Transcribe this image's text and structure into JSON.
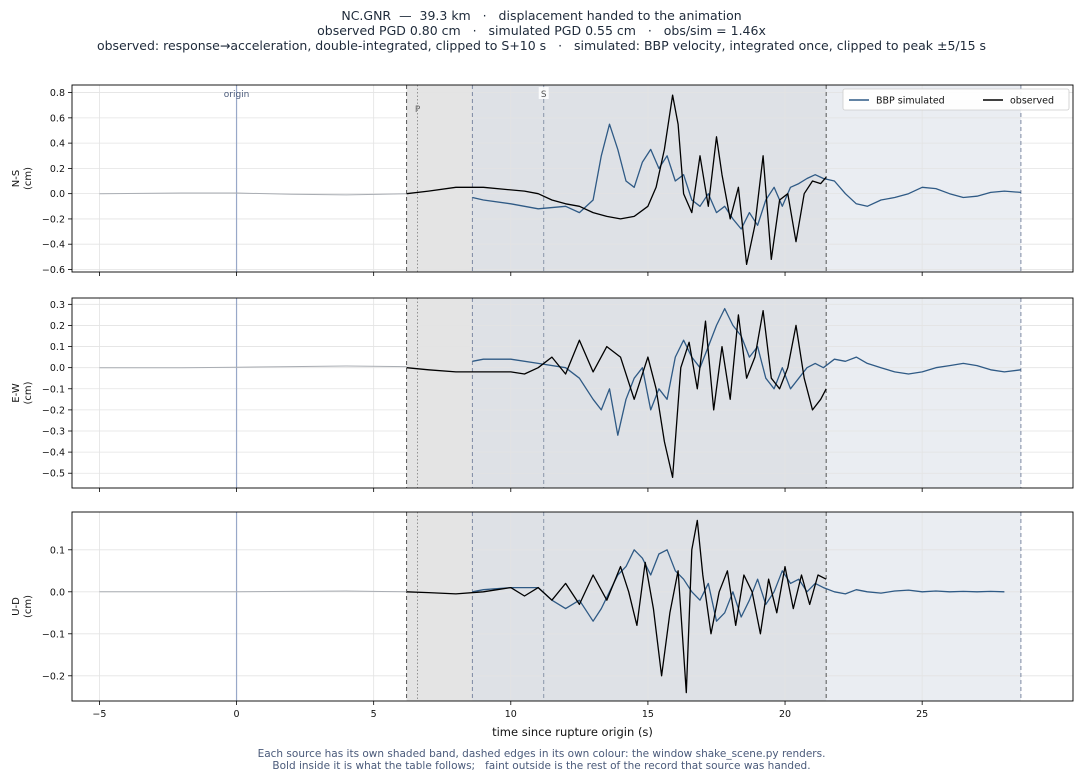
{
  "header": {
    "line1": "NC.GNR  —  39.3 km   ·   displacement handed to the animation",
    "line2": "observed PGD 0.80 cm   ·   simulated PGD 0.55 cm   ·   obs/sim = 1.46x",
    "line3": "observed: response→acceleration, double-integrated, clipped to S+10 s   ·   simulated: BBP velocity, integrated once, clipped to peak ±5/15 s"
  },
  "footer": {
    "line1": "Each source has its own shaded band, dashed edges in its own colour: the window shake_scene.py renders.",
    "line2": "Bold inside it is what the table follows;   faint outside is the rest of the record that source was handed."
  },
  "colors": {
    "observed": "#000000",
    "simulated": "#2f5a85",
    "faint": "#a9adb3",
    "origin_line": "#98a8c8",
    "obs_band": "#e4e4e4",
    "sim_band": "#d8dee8",
    "grid": "#e3e3e3"
  },
  "chart_data": {
    "type": "line",
    "xlabel": "time since rupture origin (s)",
    "xlim": [
      -6,
      30.5
    ],
    "xticks": [
      -5,
      0,
      5,
      10,
      15,
      20,
      25
    ],
    "grid": true,
    "legend": {
      "placement": "top-right",
      "entries": [
        "BBP simulated",
        "observed"
      ]
    },
    "markers": [
      {
        "label": "origin",
        "t": 0
      },
      {
        "label": "P",
        "t": 6.6
      },
      {
        "label": "S",
        "t": 11.2
      }
    ],
    "windows": {
      "observed": [
        6.2,
        21.5
      ],
      "simulated": [
        8.6,
        28.6
      ]
    },
    "panels": [
      {
        "component": "N-S",
        "ylabel": [
          "N-S",
          "(cm)"
        ],
        "ylim": [
          -0.62,
          0.86
        ],
        "yticks": [
          -0.6,
          -0.4,
          -0.2,
          0.0,
          0.2,
          0.4,
          0.6,
          0.8
        ],
        "ytick_labels": [
          "−0.6",
          "−0.4",
          "−0.2",
          "0.0",
          "0.2",
          "0.4",
          "0.6",
          "0.8"
        ],
        "faint": {
          "t": [
            -5,
            -2,
            0,
            2,
            4,
            6.2
          ],
          "v": [
            0,
            0.005,
            0.005,
            -0.005,
            -0.01,
            0
          ]
        },
        "observed": {
          "t": [
            6.2,
            7,
            8,
            9,
            10,
            10.5,
            11,
            11.5,
            12,
            12.5,
            13,
            13.5,
            14,
            14.5,
            15,
            15.3,
            15.6,
            15.9,
            16.1,
            16.3,
            16.6,
            16.9,
            17.2,
            17.5,
            17.7,
            18,
            18.3,
            18.6,
            18.9,
            19.2,
            19.5,
            19.8,
            20.1,
            20.4,
            20.7,
            21,
            21.3,
            21.5
          ],
          "v": [
            0,
            0.02,
            0.05,
            0.05,
            0.03,
            0.02,
            0.0,
            -0.05,
            -0.08,
            -0.1,
            -0.15,
            -0.18,
            -0.2,
            -0.18,
            -0.1,
            0.05,
            0.35,
            0.78,
            0.55,
            0.0,
            -0.15,
            0.3,
            -0.1,
            0.45,
            0.15,
            -0.2,
            0.05,
            -0.56,
            -0.25,
            0.3,
            -0.52,
            -0.05,
            0.0,
            -0.38,
            0.0,
            0.1,
            0.08,
            0.13
          ]
        },
        "simulated": {
          "t": [
            8.6,
            9,
            10,
            11,
            12,
            12.5,
            13,
            13.3,
            13.6,
            13.9,
            14.2,
            14.5,
            14.8,
            15.1,
            15.4,
            15.7,
            16,
            16.3,
            16.6,
            16.9,
            17.2,
            17.5,
            17.8,
            18.1,
            18.4,
            18.7,
            19,
            19.3,
            19.6,
            19.9,
            20.2,
            20.5,
            20.8,
            21.1,
            21.4,
            21.8,
            22.2,
            22.6,
            23,
            23.5,
            24,
            24.5,
            25,
            25.5,
            26,
            26.5,
            27,
            27.5,
            28,
            28.6
          ],
          "v": [
            -0.03,
            -0.05,
            -0.08,
            -0.12,
            -0.1,
            -0.15,
            -0.05,
            0.3,
            0.55,
            0.35,
            0.1,
            0.05,
            0.25,
            0.35,
            0.2,
            0.3,
            0.1,
            0.15,
            -0.05,
            -0.1,
            0.0,
            -0.15,
            -0.1,
            -0.2,
            -0.28,
            -0.15,
            -0.25,
            -0.05,
            0.05,
            -0.1,
            0.05,
            0.08,
            0.12,
            0.15,
            0.12,
            0.1,
            0.0,
            -0.08,
            -0.1,
            -0.05,
            -0.03,
            0.0,
            0.05,
            0.04,
            0.0,
            -0.03,
            -0.02,
            0.01,
            0.02,
            0.01
          ]
        }
      },
      {
        "component": "E-W",
        "ylabel": [
          "E-W",
          "(cm)"
        ],
        "ylim": [
          -0.57,
          0.33
        ],
        "yticks": [
          -0.5,
          -0.4,
          -0.3,
          -0.2,
          -0.1,
          0.0,
          0.1,
          0.2,
          0.3
        ],
        "ytick_labels": [
          "−0.5",
          "−0.4",
          "−0.3",
          "−0.2",
          "−0.1",
          "0.0",
          "0.1",
          "0.2",
          "0.3"
        ],
        "faint": {
          "t": [
            -5,
            -2,
            0,
            2,
            4,
            6.2
          ],
          "v": [
            0,
            0.0,
            0.002,
            0.005,
            0.008,
            0.005
          ]
        },
        "observed": {
          "t": [
            6.2,
            7,
            8,
            9,
            10,
            10.5,
            11,
            11.5,
            12,
            12.5,
            13,
            13.5,
            14,
            14.5,
            15,
            15.3,
            15.6,
            15.9,
            16.2,
            16.5,
            16.8,
            17.1,
            17.4,
            17.7,
            18,
            18.3,
            18.6,
            18.9,
            19.2,
            19.5,
            19.8,
            20.1,
            20.4,
            20.7,
            21,
            21.3,
            21.5
          ],
          "v": [
            0,
            -0.01,
            -0.02,
            -0.02,
            -0.02,
            -0.03,
            0.0,
            0.05,
            -0.03,
            0.13,
            -0.02,
            0.1,
            0.05,
            -0.15,
            0.05,
            -0.1,
            -0.35,
            -0.52,
            0.0,
            0.12,
            -0.1,
            0.22,
            -0.2,
            0.1,
            -0.15,
            0.25,
            -0.05,
            0.05,
            0.27,
            -0.05,
            -0.1,
            0.0,
            0.2,
            -0.05,
            -0.2,
            -0.15,
            -0.1
          ]
        },
        "simulated": {
          "t": [
            8.6,
            9,
            10,
            11,
            12,
            12.5,
            13,
            13.3,
            13.6,
            13.9,
            14.2,
            14.5,
            14.8,
            15.1,
            15.4,
            15.7,
            16,
            16.3,
            16.6,
            16.9,
            17.2,
            17.5,
            17.8,
            18.1,
            18.4,
            18.7,
            19,
            19.3,
            19.6,
            19.9,
            20.2,
            20.5,
            20.8,
            21.1,
            21.4,
            21.8,
            22.2,
            22.6,
            23,
            23.5,
            24,
            24.5,
            25,
            25.5,
            26,
            26.5,
            27,
            27.5,
            28,
            28.6
          ],
          "v": [
            0.03,
            0.04,
            0.04,
            0.02,
            0.0,
            -0.05,
            -0.15,
            -0.2,
            -0.1,
            -0.32,
            -0.15,
            -0.05,
            0.0,
            -0.2,
            -0.1,
            -0.15,
            0.05,
            0.13,
            0.05,
            0.0,
            0.1,
            0.2,
            0.28,
            0.2,
            0.15,
            0.05,
            0.1,
            -0.05,
            -0.1,
            0.0,
            -0.1,
            -0.05,
            0.0,
            0.02,
            0.0,
            0.04,
            0.03,
            0.05,
            0.02,
            0.0,
            -0.02,
            -0.03,
            -0.02,
            0.0,
            0.01,
            0.02,
            0.01,
            -0.01,
            -0.02,
            -0.01
          ]
        }
      },
      {
        "component": "U-D",
        "ylabel": [
          "U-D",
          "(cm)"
        ],
        "ylim": [
          -0.26,
          0.19
        ],
        "yticks": [
          -0.2,
          -0.1,
          0.0,
          0.1
        ],
        "ytick_labels": [
          "−0.2",
          "−0.1",
          "0.0",
          "0.1"
        ],
        "faint": {
          "t": [
            -5,
            -2,
            0,
            2,
            4,
            6.2
          ],
          "v": [
            0,
            0.0,
            0.0,
            0.001,
            0.002,
            0.0
          ]
        },
        "observed": {
          "t": [
            6.2,
            7,
            8,
            9,
            9.5,
            10,
            10.5,
            11,
            11.5,
            12,
            12.5,
            13,
            13.5,
            14,
            14.3,
            14.6,
            14.9,
            15.2,
            15.5,
            15.8,
            16.1,
            16.4,
            16.6,
            16.8,
            17,
            17.3,
            17.6,
            17.9,
            18.2,
            18.5,
            18.8,
            19.1,
            19.4,
            19.7,
            20,
            20.3,
            20.6,
            20.9,
            21.2,
            21.5
          ],
          "v": [
            0,
            -0.002,
            -0.005,
            0.0,
            0.005,
            0.01,
            -0.01,
            0.01,
            -0.02,
            0.02,
            -0.03,
            0.04,
            -0.02,
            0.06,
            0.0,
            -0.08,
            0.07,
            -0.04,
            -0.2,
            -0.05,
            0.05,
            -0.24,
            0.1,
            0.17,
            0.04,
            -0.1,
            0.0,
            0.05,
            -0.08,
            0.04,
            0.0,
            -0.1,
            0.03,
            -0.05,
            0.06,
            -0.04,
            0.04,
            -0.03,
            0.04,
            0.03
          ]
        },
        "simulated": {
          "t": [
            8.6,
            9,
            10,
            11,
            11.5,
            12,
            12.5,
            13,
            13.3,
            13.6,
            13.9,
            14.2,
            14.5,
            14.8,
            15.1,
            15.4,
            15.7,
            16,
            16.3,
            16.6,
            16.9,
            17.2,
            17.5,
            17.8,
            18.1,
            18.4,
            18.7,
            19,
            19.3,
            19.6,
            19.9,
            20.2,
            20.5,
            20.8,
            21.1,
            21.4,
            21.8,
            22.2,
            22.6,
            23,
            23.5,
            24,
            24.5,
            25,
            25.5,
            26,
            26.5,
            27,
            27.5,
            28,
            28.6
          ],
          "v": [
            0.0,
            0.005,
            0.01,
            0.01,
            -0.02,
            -0.04,
            -0.02,
            -0.07,
            -0.04,
            0.0,
            0.04,
            0.06,
            0.1,
            0.08,
            0.04,
            0.09,
            0.1,
            0.05,
            0.03,
            0.0,
            -0.02,
            0.02,
            -0.07,
            -0.05,
            0.0,
            -0.06,
            -0.02,
            0.03,
            -0.03,
            0.0,
            0.05,
            0.02,
            0.03,
            0.0,
            0.02,
            0.01,
            0.0,
            -0.005,
            0.005,
            0.0,
            -0.003,
            0.002,
            0.004,
            0.0,
            0.002,
            0.0,
            0.001,
            0.0,
            0.001,
            0.0
          ]
        }
      }
    ]
  }
}
